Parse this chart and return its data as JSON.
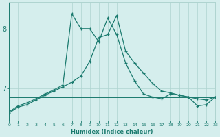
{
  "xlabel": "Humidex (Indice chaleur)",
  "x": [
    0,
    1,
    2,
    3,
    4,
    5,
    6,
    7,
    8,
    9,
    10,
    11,
    12,
    13,
    14,
    15,
    16,
    17,
    18,
    19,
    20,
    21,
    22,
    23
  ],
  "y_main": [
    6.6,
    6.7,
    6.75,
    6.82,
    6.9,
    6.97,
    7.05,
    8.25,
    8.0,
    8.0,
    7.78,
    8.18,
    7.9,
    7.42,
    7.12,
    6.9,
    6.85,
    6.82,
    6.9,
    6.88,
    6.85,
    6.7,
    6.72,
    6.85
  ],
  "y_second": [
    6.58,
    6.68,
    6.72,
    6.8,
    6.88,
    6.95,
    7.02,
    7.1,
    7.2,
    7.45,
    7.85,
    7.9,
    8.22,
    7.62,
    7.42,
    7.25,
    7.08,
    6.95,
    6.92,
    6.88,
    6.85,
    6.82,
    6.8,
    6.85
  ],
  "y_flat_upper": [
    6.85,
    6.85,
    6.85,
    6.85,
    6.85,
    6.85,
    6.85,
    6.85,
    6.85,
    6.85,
    6.85,
    6.85,
    6.85,
    6.85,
    6.85,
    6.85,
    6.85,
    6.85,
    6.85,
    6.85,
    6.85,
    6.85,
    6.85,
    6.85
  ],
  "y_flat_lower": [
    6.75,
    6.75,
    6.75,
    6.75,
    6.75,
    6.75,
    6.75,
    6.75,
    6.75,
    6.75,
    6.75,
    6.75,
    6.75,
    6.75,
    6.75,
    6.75,
    6.75,
    6.75,
    6.75,
    6.75,
    6.75,
    6.75,
    6.75,
    6.75
  ],
  "line_color": "#1a7a6e",
  "bg_color": "#d5eeed",
  "grid_color": "#aed4d0",
  "ylim": [
    6.45,
    8.45
  ],
  "yticks": [
    7,
    8
  ],
  "xlim": [
    0,
    23
  ]
}
